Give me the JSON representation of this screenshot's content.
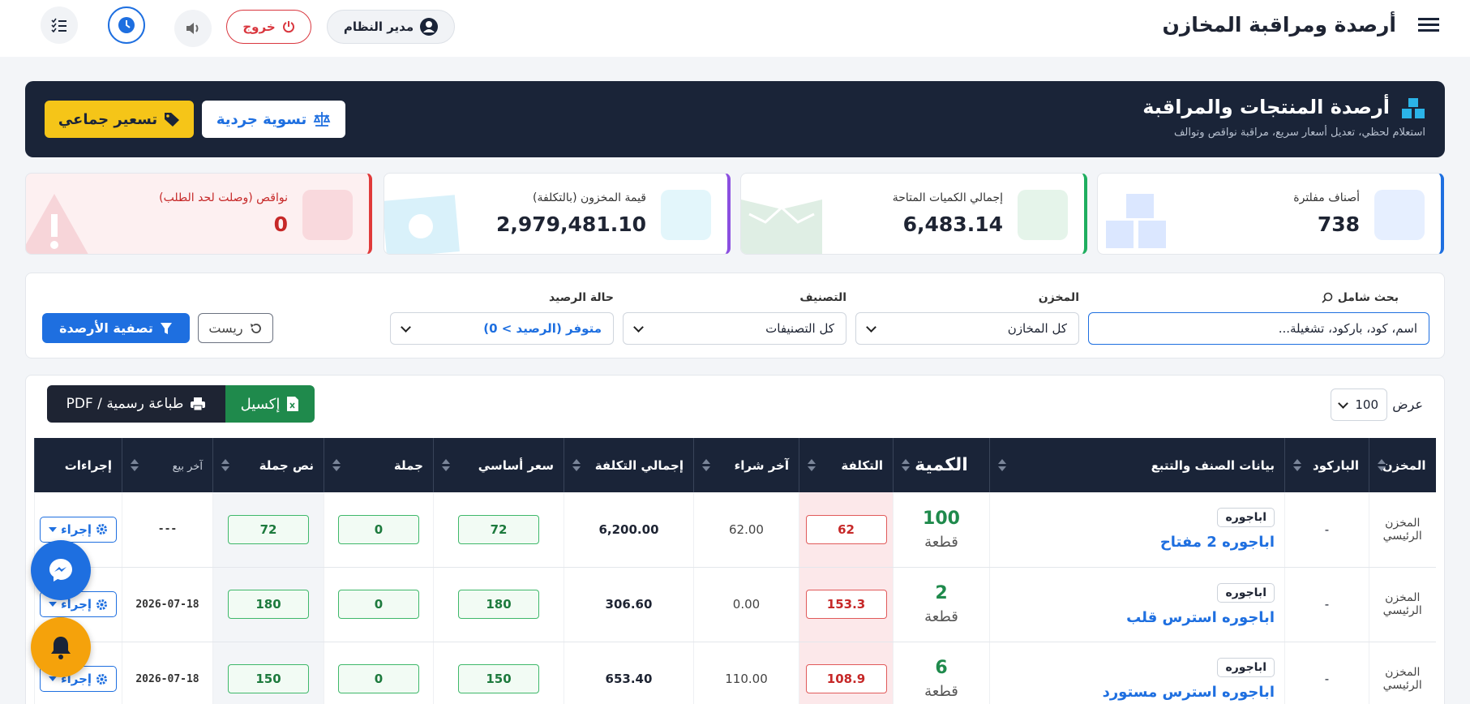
{
  "header": {
    "title": "أرصدة ومراقبة المخازن",
    "user": "مدير النظام",
    "logout": "خروج"
  },
  "banner": {
    "title": "أرصدة المنتجات والمراقبة",
    "subtitle": "استعلام لحظي، تعديل أسعار سريع، مراقبة نواقص وتوالف",
    "adjust_button": "تسوية جردية",
    "pricing_button": "تسعير جماعي"
  },
  "stats": [
    {
      "label": "أصناف مفلترة",
      "value": "738"
    },
    {
      "label": "إجمالي الكميات المتاحة",
      "value": "6,483.14"
    },
    {
      "label": "قيمة المخزون (بالتكلفة)",
      "value": "2,979,481.10"
    },
    {
      "label": "نواقص (وصلت لحد الطلب)",
      "value": "0"
    }
  ],
  "filters": {
    "search_label": "بحث شامل",
    "search_placeholder": "اسم، كود، باركود، تشغيلة...",
    "warehouse_label": "المخزن",
    "warehouse_value": "كل المخازن",
    "category_label": "التصنيف",
    "category_value": "كل التصنيفات",
    "status_label": "حالة الرصيد",
    "status_value": "متوفر (الرصيد > 0)",
    "reset": "ريست",
    "apply": "تصفية الأرصدة"
  },
  "tools": {
    "show_label": "عرض",
    "page_size": "100",
    "excel": "إكسيل",
    "print": "طباعة رسمية / PDF"
  },
  "table": {
    "columns": [
      "المخزن",
      "الباركود",
      "بيانات الصنف والتتبع",
      "الكمية",
      "التكلفة",
      "آخر شراء",
      "إجمالي التكلفة",
      "سعر أساسي",
      "جملة",
      "نص جملة",
      "آخر بيع",
      "إجراءات"
    ],
    "rows": [
      {
        "warehouse": "المخزن الرئيسي",
        "barcode": "-",
        "category": "اباجوره",
        "name": "اباجوره 2 مفتاح",
        "qty": "100",
        "unit": "قطعة",
        "cost": "62",
        "last_purchase": "62.00",
        "total_cost": "6,200.00",
        "base_price": "72",
        "wholesale": "0",
        "half_wholesale": "72",
        "last_sale": "---",
        "action": "إجراء"
      },
      {
        "warehouse": "المخزن الرئيسي",
        "barcode": "-",
        "category": "اباجوره",
        "name": "اباجوره استرس قلب",
        "qty": "2",
        "unit": "قطعة",
        "cost": "153.3",
        "last_purchase": "0.00",
        "total_cost": "306.60",
        "base_price": "180",
        "wholesale": "0",
        "half_wholesale": "180",
        "last_sale": "2026-07-18",
        "action": "إجراء"
      },
      {
        "warehouse": "المخزن الرئيسي",
        "barcode": "-",
        "category": "اباجوره",
        "name": "اباجوره استرس مستورد",
        "qty": "6",
        "unit": "قطعة",
        "cost": "108.9",
        "last_purchase": "110.00",
        "total_cost": "653.40",
        "base_price": "150",
        "wholesale": "0",
        "half_wholesale": "150",
        "last_sale": "2026-07-18",
        "action": "إجراء"
      }
    ]
  }
}
